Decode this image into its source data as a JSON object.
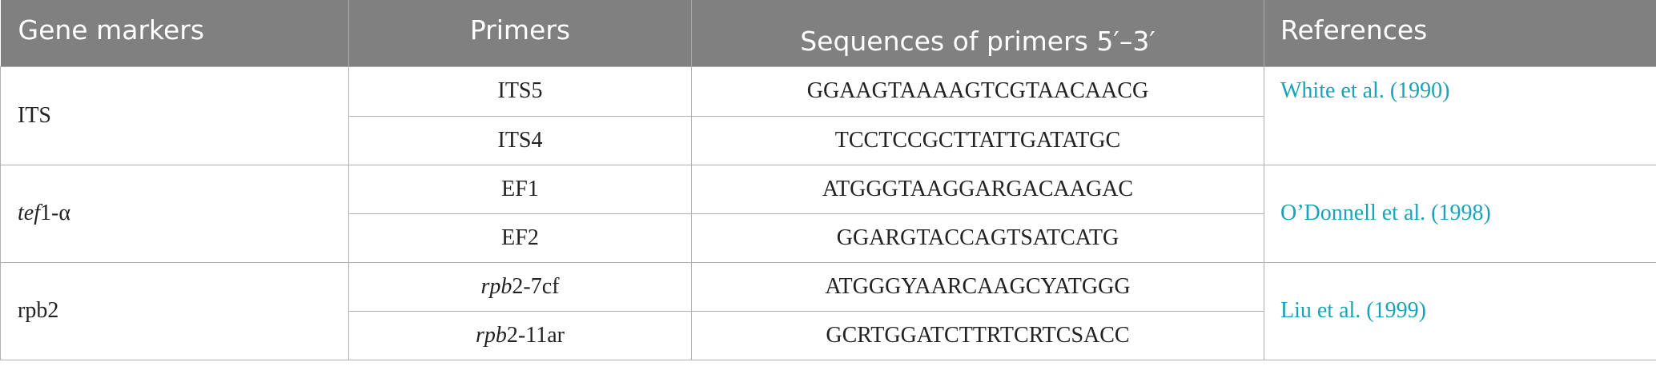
{
  "table": {
    "headers": {
      "gene_markers": "Gene markers",
      "primers": "Primers",
      "sequences": "Sequences of primers 5′–3′",
      "references": "References"
    },
    "groups": [
      {
        "gene_italic": "",
        "gene_rest": "ITS",
        "reference": "White et al. (1990)",
        "rows": [
          {
            "primer_italic": "",
            "primer_rest": "ITS5",
            "sequence": "GGAAGTAAAAGTCGTAACAACG"
          },
          {
            "primer_italic": "",
            "primer_rest": "ITS4",
            "sequence": "TCCTCCGCTTATTGATATGC"
          }
        ]
      },
      {
        "gene_italic": "tef",
        "gene_rest": "1-α",
        "reference": "O’Donnell et al. (1998)",
        "rows": [
          {
            "primer_italic": "",
            "primer_rest": "EF1",
            "sequence": "ATGGGTAAGGARGACAAGAC"
          },
          {
            "primer_italic": "",
            "primer_rest": "EF2",
            "sequence": "GGARGTACCAGTSATCATG"
          }
        ]
      },
      {
        "gene_italic": "",
        "gene_rest": "rpb2",
        "reference": "Liu et al. (1999)",
        "rows": [
          {
            "primer_italic": "rpb",
            "primer_rest": "2-7cf",
            "sequence": "ATGGGYAARCAAGCYATGGG"
          },
          {
            "primer_italic": "rpb",
            "primer_rest": "2-11ar",
            "sequence": "GCRTGGATCTTRTCRTCSACC"
          }
        ]
      }
    ],
    "colors": {
      "header_bg": "#808080",
      "header_text": "#ffffff",
      "link": "#1aa3b8",
      "border": "#b0b0b0"
    }
  }
}
